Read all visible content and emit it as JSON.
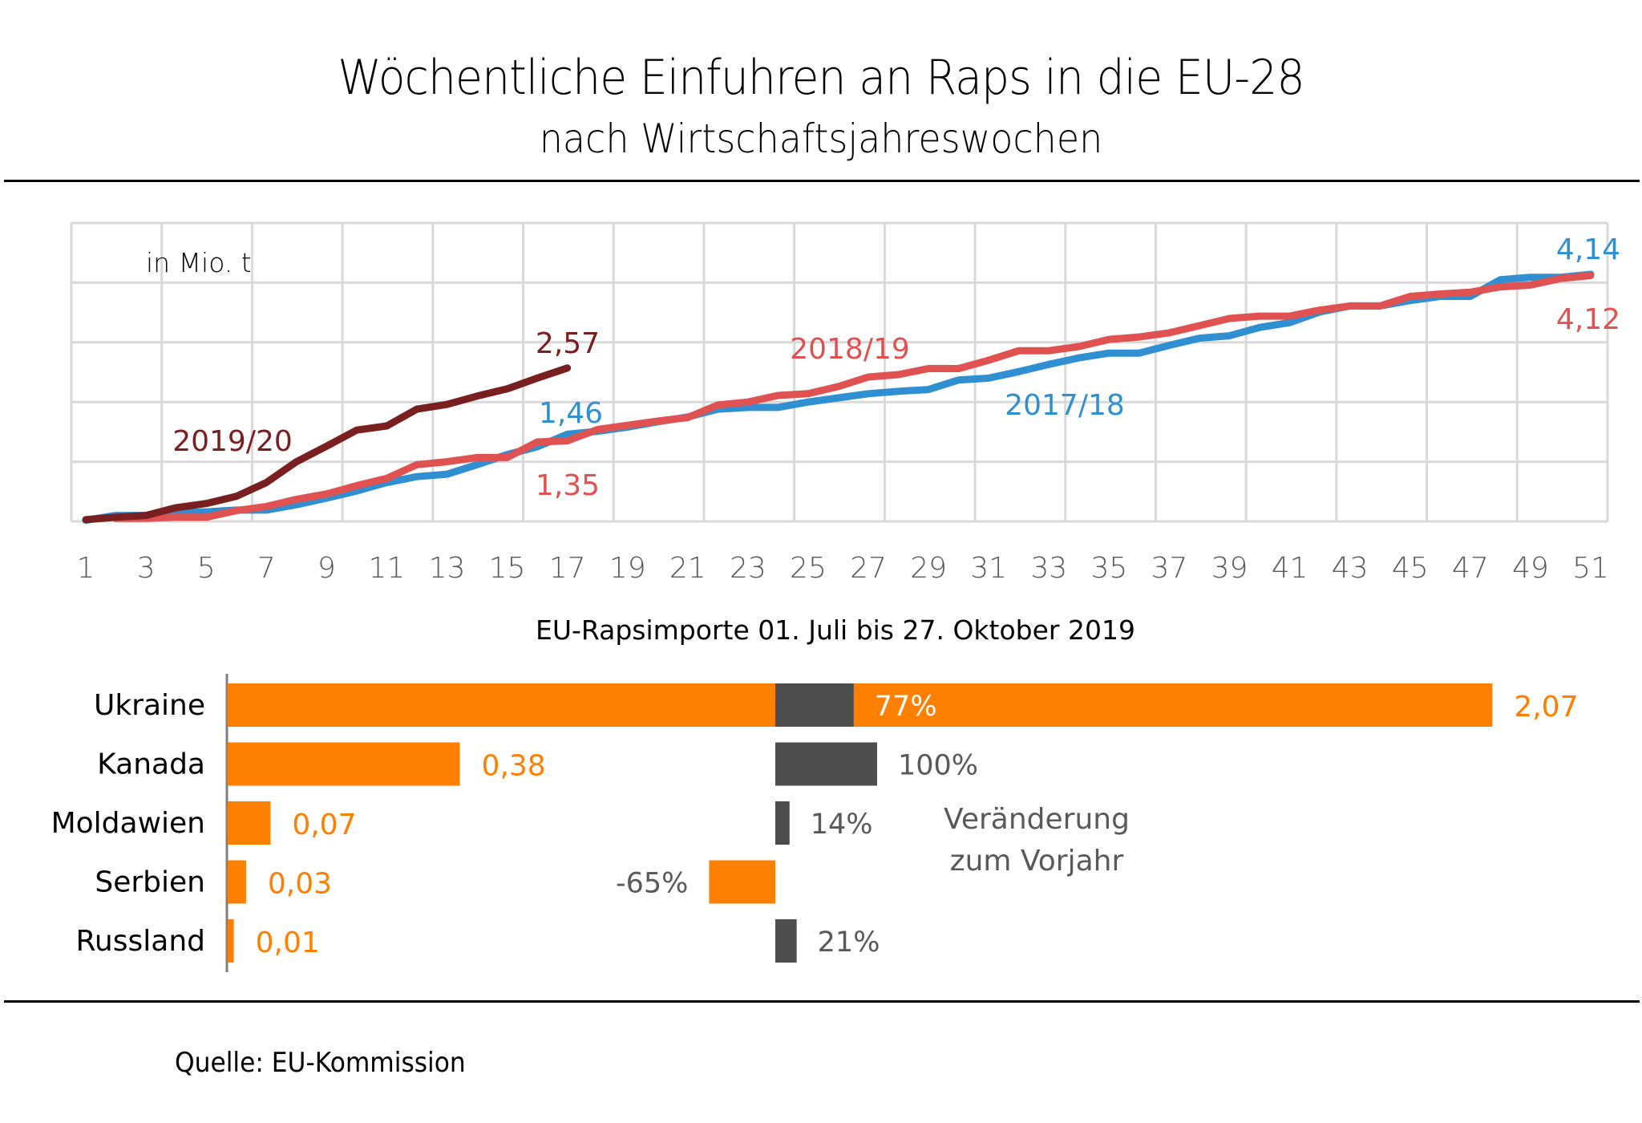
{
  "header": {
    "title": "Wöchentliche Einfuhren an Raps in die EU-28",
    "subtitle": "nach Wirtschaftsjahreswochen"
  },
  "source": "Quelle:  EU-Kommission",
  "colors": {
    "s2017": "#2f8fd1",
    "s2018": "#e05252",
    "s2019": "#7a1f1f",
    "grid": "#d9d9d9",
    "orange": "#ff7f00",
    "dark": "#4d4d4d",
    "label_gray": "#595959"
  },
  "chart_data": [
    {
      "type": "line",
      "unit_label": "in Mio. t",
      "x_ticks": [
        "1",
        "3",
        "5",
        "7",
        "9",
        "11",
        "13",
        "15",
        "17",
        "19",
        "21",
        "23",
        "25",
        "27",
        "29",
        "31",
        "33",
        "35",
        "37",
        "39",
        "41",
        "43",
        "45",
        "47",
        "49",
        "51"
      ],
      "x_range": [
        1,
        51
      ],
      "ylim": [
        0,
        5
      ],
      "y_gridlines": [
        1,
        2,
        3,
        4,
        5
      ],
      "grid": true,
      "series": [
        {
          "name": "2017/18",
          "color_key": "s2017",
          "end_label": "4,14",
          "x_start": 1,
          "values": [
            0.02,
            0.1,
            0.1,
            0.14,
            0.16,
            0.19,
            0.19,
            0.28,
            0.39,
            0.51,
            0.65,
            0.75,
            0.79,
            0.95,
            1.12,
            1.25,
            1.46,
            1.51,
            1.58,
            1.67,
            1.75,
            1.88,
            1.91,
            1.91,
            2.0,
            2.07,
            2.14,
            2.18,
            2.21,
            2.37,
            2.4,
            2.51,
            2.63,
            2.74,
            2.82,
            2.82,
            2.95,
            3.07,
            3.11,
            3.25,
            3.33,
            3.51,
            3.61,
            3.61,
            3.7,
            3.77,
            3.77,
            4.05,
            4.09,
            4.09,
            4.14
          ]
        },
        {
          "name": "2018/19",
          "color_key": "s2018",
          "end_label": "4,12",
          "x_start": 2,
          "values": [
            0.05,
            0.05,
            0.07,
            0.07,
            0.18,
            0.25,
            0.37,
            0.46,
            0.6,
            0.72,
            0.95,
            1.0,
            1.07,
            1.07,
            1.33,
            1.35,
            1.54,
            1.61,
            1.68,
            1.74,
            1.95,
            2.0,
            2.11,
            2.14,
            2.26,
            2.42,
            2.46,
            2.56,
            2.56,
            2.7,
            2.86,
            2.86,
            2.93,
            3.05,
            3.09,
            3.16,
            3.28,
            3.4,
            3.44,
            3.44,
            3.54,
            3.61,
            3.61,
            3.77,
            3.81,
            3.84,
            3.93,
            3.96,
            4.07,
            4.12
          ]
        },
        {
          "name": "2019/20",
          "color_key": "s2019",
          "end_label": "2,57",
          "x_start": 1,
          "values": [
            0.03,
            0.07,
            0.1,
            0.23,
            0.3,
            0.42,
            0.65,
            1.0,
            1.26,
            1.53,
            1.6,
            1.88,
            1.96,
            2.1,
            2.22,
            2.4,
            2.57
          ]
        }
      ],
      "annotations": [
        {
          "text": "2019/20",
          "color_key": "s2019"
        },
        {
          "text": "2,57",
          "color_key": "s2019"
        },
        {
          "text": "1,46",
          "color_key": "s2017"
        },
        {
          "text": "1,35",
          "color_key": "s2018"
        },
        {
          "text": "2018/19",
          "color_key": "s2018"
        },
        {
          "text": "2017/18",
          "color_key": "s2017"
        },
        {
          "text": "4,14",
          "color_key": "s2017"
        },
        {
          "text": "4,12",
          "color_key": "s2018"
        }
      ]
    },
    {
      "type": "bar",
      "orientation": "horizontal",
      "title": "EU-Rapsimporte  01. Juli bis 27. Oktober 2019",
      "unit": "Mio. t",
      "categories": [
        "Ukraine",
        "Kanada",
        "Moldawien",
        "Serbien",
        "Russland"
      ],
      "values": [
        2.07,
        0.38,
        0.07,
        0.03,
        0.01
      ],
      "value_labels": [
        "2,07",
        "0,38",
        "0,07",
        "0,03",
        "0,01"
      ],
      "change_series": {
        "name": "Veränderung zum Vorjahr",
        "legend_lines": [
          "Veränderung",
          "zum Vorjahr"
        ],
        "values_percent": [
          77,
          100,
          14,
          -65,
          21
        ],
        "labels": [
          "77%",
          "100%",
          "14%",
          "-65%",
          "21%"
        ]
      }
    }
  ]
}
